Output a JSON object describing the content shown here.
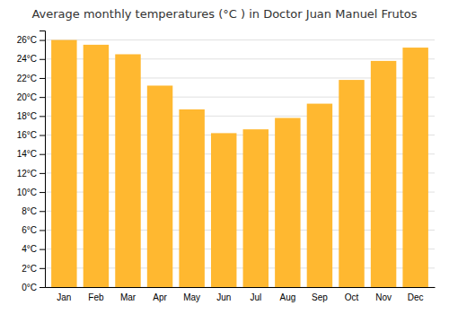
{
  "chart_data": {
    "type": "bar",
    "title": "Average monthly temperatures (°C ) in Doctor Juan Manuel Frutos",
    "categories": [
      "Jan",
      "Feb",
      "Mar",
      "Apr",
      "May",
      "Jun",
      "Jul",
      "Aug",
      "Sep",
      "Oct",
      "Nov",
      "Dec"
    ],
    "values": [
      26.0,
      25.5,
      24.5,
      21.2,
      18.7,
      16.2,
      16.6,
      17.8,
      19.3,
      21.8,
      23.8,
      25.2
    ],
    "color": "#FFB830",
    "ylim": [
      0,
      27
    ],
    "yticks": [
      {
        "value": 0,
        "label": "0°C"
      },
      {
        "value": 2,
        "label": "2°C"
      },
      {
        "value": 4,
        "label": "4°C"
      },
      {
        "value": 6,
        "label": "6°C"
      },
      {
        "value": 8,
        "label": "8°C"
      },
      {
        "value": 10,
        "label": "10°C"
      },
      {
        "value": 12,
        "label": "12°C"
      },
      {
        "value": 14,
        "label": "14°C"
      },
      {
        "value": 16,
        "label": "16°C"
      },
      {
        "value": 18,
        "label": "18°C"
      },
      {
        "value": 20,
        "label": "20°C"
      },
      {
        "value": 22,
        "label": "22°C"
      },
      {
        "value": 24,
        "label": "24°C"
      },
      {
        "value": 26,
        "label": "26°C"
      }
    ],
    "grid": true
  }
}
